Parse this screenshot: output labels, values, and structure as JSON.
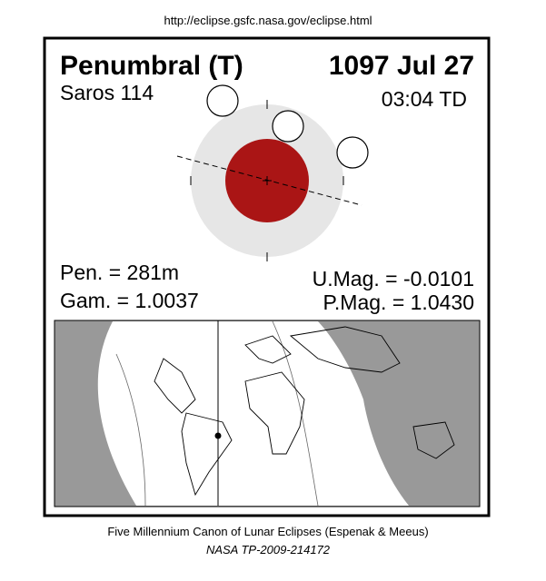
{
  "header": {
    "url": "http://eclipse.gsfc.nasa.gov/eclipse.html"
  },
  "eclipse": {
    "type": "Penumbral (T)",
    "date": "1097 Jul 27",
    "saros": "Saros 114",
    "time": "03:04 TD",
    "pen": "Pen. = 281m",
    "gam": "Gam. = 1.0037",
    "umag": "U.Mag. = -0.0101",
    "pmag": "P.Mag. = 1.0430"
  },
  "footer": {
    "canon": "Five Millennium Canon of Lunar Eclipses (Espenak & Meeus)",
    "ref": "NASA TP-2009-214172"
  }
}
